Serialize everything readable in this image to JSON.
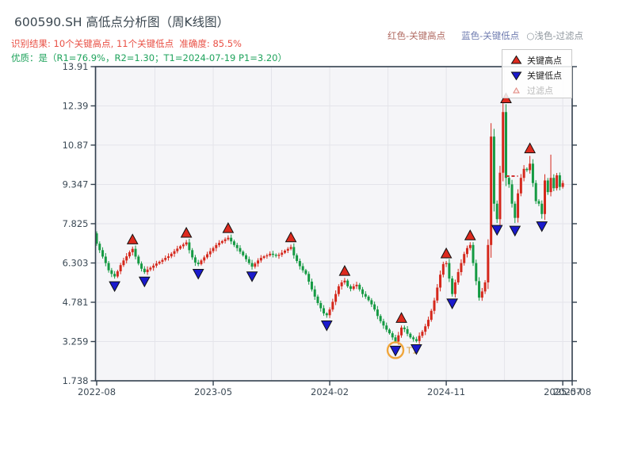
{
  "header": {
    "title": "600590.SH 高低点分析图（周K线图）",
    "result_line": "识别结果: 10个关键高点, 11个关键低点  准确度: 85.5%",
    "quality_line": "优质：是（R1=76.9%，R2=1.30；T1=2024-07-19 P1=3.20）",
    "top_legend": [
      {
        "label": "红色-关键高点",
        "color": "#b06a62"
      },
      {
        "label": "蓝色-关键低点",
        "color": "#6f7cb0"
      },
      {
        "label": "○浅色-过滤点",
        "color": "#8f979e"
      }
    ]
  },
  "legend_box": {
    "items": [
      {
        "label": "关键高点",
        "marker": "triangle-up",
        "marker_color": "#dd2a1e"
      },
      {
        "label": "关键低点",
        "marker": "triangle-down",
        "marker_color": "#1a1acc"
      },
      {
        "label": "过滤点",
        "marker": "triangle-up-outline",
        "marker_color": "#f3b6ae"
      }
    ]
  },
  "chart_data": {
    "type": "candlestick",
    "title": "600590.SH 高低点分析图（周K线图）",
    "x_axis": {
      "tick_labels": [
        "2022-08",
        "2023-05",
        "2024-02",
        "2024-11",
        "2025-07"
      ],
      "tick_weeks": [
        0,
        39,
        78,
        117,
        156
      ],
      "end_tick_label": "2025-08",
      "grid_weeks": [
        0,
        19.5,
        39,
        58.5,
        78,
        97.5,
        117,
        136.5,
        156
      ]
    },
    "y_axis": {
      "tick_labels": [
        "1.738",
        "3.259",
        "4.781",
        "6.303",
        "7.825",
        "9.347",
        "10.87",
        "12.39",
        "13.91"
      ],
      "tick_values": [
        1.738,
        3.259,
        4.781,
        6.303,
        7.825,
        9.347,
        10.87,
        12.39,
        13.91
      ],
      "min": 1.738,
      "max": 13.91
    },
    "colors": {
      "up": "#d5281c",
      "down": "#159a43",
      "grid": "#e4e4ea",
      "plot_bg": "#f5f5f8",
      "spine": "#33404e",
      "tick_label": "#3c4a56",
      "marker_high": "#dd2a1e",
      "marker_low": "#1a1acc",
      "marker_outline": "#111111"
    },
    "first_open": 7.45,
    "weekly_closes": [
      7.05,
      6.8,
      6.55,
      6.3,
      6.02,
      5.88,
      5.78,
      5.98,
      6.22,
      6.4,
      6.56,
      6.72,
      6.85,
      6.55,
      6.28,
      6.08,
      5.95,
      6.05,
      6.12,
      6.2,
      6.28,
      6.35,
      6.42,
      6.5,
      6.56,
      6.66,
      6.76,
      6.86,
      6.95,
      7.02,
      7.1,
      6.8,
      6.52,
      6.32,
      6.26,
      6.4,
      6.52,
      6.64,
      6.76,
      6.88,
      7.0,
      7.08,
      7.15,
      7.22,
      7.28,
      7.14,
      7.0,
      6.88,
      6.74,
      6.6,
      6.45,
      6.3,
      6.16,
      6.28,
      6.4,
      6.5,
      6.56,
      6.6,
      6.66,
      6.62,
      6.58,
      6.62,
      6.7,
      6.78,
      6.85,
      6.92,
      6.6,
      6.38,
      6.18,
      6.02,
      5.88,
      5.58,
      5.28,
      5.0,
      4.75,
      4.55,
      4.35,
      4.28,
      4.5,
      4.8,
      5.1,
      5.4,
      5.55,
      5.62,
      5.4,
      5.3,
      5.4,
      5.46,
      5.28,
      5.1,
      5.0,
      4.86,
      4.7,
      4.5,
      4.25,
      4.05,
      3.88,
      3.72,
      3.58,
      3.42,
      3.26,
      3.5,
      3.8,
      3.74,
      3.56,
      3.42,
      3.35,
      3.28,
      3.48,
      3.64,
      3.85,
      4.1,
      4.45,
      4.85,
      5.35,
      5.85,
      6.26,
      6.3,
      5.7,
      5.1,
      5.55,
      5.95,
      6.3,
      6.65,
      6.88,
      7.0,
      6.3,
      5.6,
      4.96,
      5.2,
      5.55,
      7.0,
      11.2,
      8.6,
      8.0,
      9.8,
      12.15,
      9.6,
      9.35,
      8.6,
      8.05,
      9.0,
      9.6,
      9.95,
      9.9,
      10.15,
      9.4,
      8.7,
      8.6,
      8.2,
      9.5,
      9.05,
      9.6,
      9.2,
      9.7,
      9.25,
      9.4
    ],
    "key_highs": [
      {
        "week": 12,
        "price": 6.92
      },
      {
        "week": 30,
        "price": 7.18
      },
      {
        "week": 44,
        "price": 7.36
      },
      {
        "week": 65,
        "price": 7.0
      },
      {
        "week": 83,
        "price": 5.7
      },
      {
        "week": 102,
        "price": 3.88
      },
      {
        "week": 117,
        "price": 6.38
      },
      {
        "week": 125,
        "price": 7.08
      },
      {
        "week": 137,
        "price": 12.39
      },
      {
        "week": 145,
        "price": 10.45
      }
    ],
    "key_lows": [
      {
        "week": 6,
        "price": 5.7
      },
      {
        "week": 16,
        "price": 5.88
      },
      {
        "week": 34,
        "price": 6.18
      },
      {
        "week": 52,
        "price": 6.08
      },
      {
        "week": 77,
        "price": 4.18
      },
      {
        "week": 100,
        "price": 3.2,
        "highlight": true
      },
      {
        "week": 107,
        "price": 3.26
      },
      {
        "week": 119,
        "price": 5.03
      },
      {
        "week": 134,
        "price": 7.88
      },
      {
        "week": 140,
        "price": 7.85
      },
      {
        "week": 149,
        "price": 8.02
      }
    ],
    "extra_wicks": [
      {
        "week": 132,
        "price": 11.55
      },
      {
        "week": 152,
        "price": 10.5
      }
    ],
    "t1_marker": {
      "week": 100,
      "label": "T1",
      "text_color": "#d9a045",
      "ring_color": "#f0a63c"
    },
    "dashed_segment": {
      "from_week": 137,
      "to_week": 141,
      "price": 9.67,
      "color": "#d03030"
    }
  }
}
